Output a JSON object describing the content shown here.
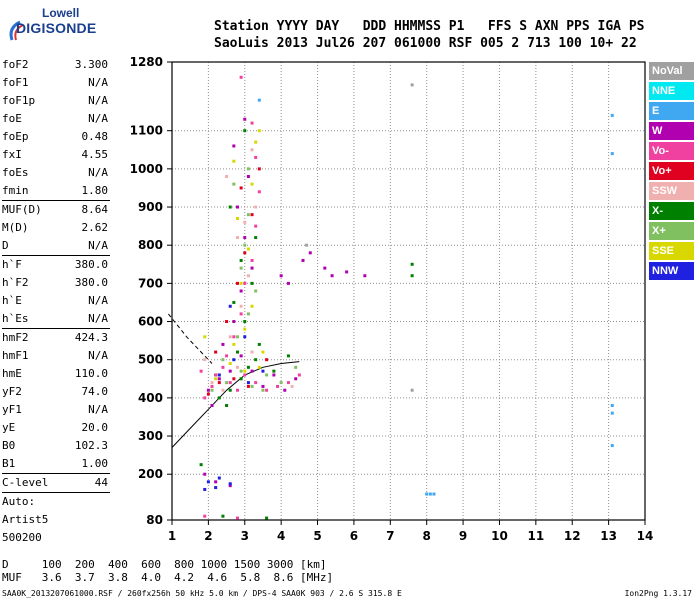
{
  "logo": {
    "line1": "Lowell",
    "line2": "DIGISONDE"
  },
  "header": {
    "line1": "Station YYYY DAY   DDD HHMMSS P1   FFS S AXN PPS IGA PS",
    "line2": "SaoLuis 2013 Jul26 207 061000 RSF 005 2 713 100 10+ 22"
  },
  "params": [
    {
      "name": "foF2",
      "value": "3.300"
    },
    {
      "name": "foF1",
      "value": "N/A"
    },
    {
      "name": "foF1p",
      "value": "N/A"
    },
    {
      "name": "foE",
      "value": "N/A"
    },
    {
      "name": "foEp",
      "value": "0.48"
    },
    {
      "name": "fxI",
      "value": "4.55"
    },
    {
      "name": "foEs",
      "value": "N/A"
    },
    {
      "name": "fmin",
      "value": "1.80",
      "sep": true
    },
    {
      "name": "MUF(D)",
      "value": "8.64"
    },
    {
      "name": "M(D)",
      "value": "2.62"
    },
    {
      "name": "D",
      "value": "N/A",
      "sep": true
    },
    {
      "name": "h`F",
      "value": "380.0"
    },
    {
      "name": "h`F2",
      "value": "380.0"
    },
    {
      "name": "h`E",
      "value": "N/A"
    },
    {
      "name": "h`Es",
      "value": "N/A",
      "sep": true
    },
    {
      "name": "hmF2",
      "value": "424.3"
    },
    {
      "name": "hmF1",
      "value": "N/A"
    },
    {
      "name": "hmE",
      "value": "110.0"
    },
    {
      "name": "yF2",
      "value": "74.0"
    },
    {
      "name": "yF1",
      "value": "N/A"
    },
    {
      "name": "yE",
      "value": "20.0"
    },
    {
      "name": "B0",
      "value": "102.3"
    },
    {
      "name": "B1",
      "value": "1.00",
      "sep": true
    },
    {
      "name": "C-level",
      "value": "44",
      "sep": true
    },
    {
      "name": "Auto:",
      "value": ""
    },
    {
      "name": "Artist5",
      "value": ""
    },
    {
      "name": "500200",
      "value": ""
    }
  ],
  "legend": [
    {
      "label": "NoVal",
      "color": "#a0a0a0"
    },
    {
      "label": "NNE",
      "color": "#00e8f0"
    },
    {
      "label": "E",
      "color": "#40a8f0"
    },
    {
      "label": "W",
      "color": "#b000b0"
    },
    {
      "label": "Vo-",
      "color": "#f040a0"
    },
    {
      "label": "Vo+",
      "color": "#e00020"
    },
    {
      "label": "SSW",
      "color": "#f0b0b0"
    },
    {
      "label": "X-",
      "color": "#008000"
    },
    {
      "label": "X+",
      "color": "#80c060"
    },
    {
      "label": "SSE",
      "color": "#d8d800"
    },
    {
      "label": "NNW",
      "color": "#2020e0"
    }
  ],
  "bottom": {
    "line1": "D     100  200  400  600  800 1000 1500 3000 [km]",
    "line2": "MUF   3.6  3.7  3.8  4.0  4.2  4.6  5.8  8.6 [MHz]"
  },
  "footer": {
    "left": "SAA0K_2013207061000.RSF / 260fx256h 50 kHz 5.0 km / DPS-4 SAA0K 903 / 2.6 S 315.8 E",
    "right": "Ion2Png 1.3.17"
  },
  "chart_data": {
    "type": "scatter",
    "title": "",
    "xlabel": "",
    "ylabel": "",
    "xlim": [
      1,
      14
    ],
    "ylim": [
      80,
      1280
    ],
    "x_ticks": [
      1,
      2,
      3,
      4,
      5,
      6,
      7,
      8,
      9,
      10,
      11,
      12,
      13,
      14
    ],
    "y_ticks": [
      80,
      200,
      300,
      400,
      500,
      600,
      700,
      800,
      900,
      1000,
      1100,
      1280
    ],
    "grid": true,
    "series": [
      {
        "name": "X-",
        "points": [
          [
            2.3,
            400
          ],
          [
            2.6,
            420
          ],
          [
            2.9,
            450
          ],
          [
            3.1,
            480
          ],
          [
            3.3,
            500
          ],
          [
            2.2,
            460
          ],
          [
            2.8,
            520
          ],
          [
            3.4,
            540
          ],
          [
            3.0,
            600
          ],
          [
            2.7,
            650
          ],
          [
            3.2,
            700
          ],
          [
            2.9,
            760
          ],
          [
            3.3,
            820
          ],
          [
            2.5,
            380
          ],
          [
            3.8,
            470
          ],
          [
            4.2,
            510
          ],
          [
            3.0,
            1100
          ],
          [
            7.6,
            720
          ],
          [
            7.6,
            750
          ],
          [
            2.6,
            900
          ],
          [
            1.8,
            225
          ],
          [
            2.4,
            90
          ],
          [
            3.6,
            85
          ]
        ]
      },
      {
        "name": "X+",
        "points": [
          [
            2.5,
            440
          ],
          [
            2.9,
            470
          ],
          [
            3.2,
            430
          ],
          [
            3.6,
            460
          ],
          [
            2.4,
            500
          ],
          [
            2.8,
            560
          ],
          [
            3.1,
            620
          ],
          [
            3.3,
            680
          ],
          [
            2.9,
            740
          ],
          [
            3.0,
            800
          ],
          [
            3.1,
            880
          ],
          [
            2.7,
            960
          ],
          [
            3.5,
            420
          ],
          [
            4.0,
            440
          ],
          [
            4.4,
            480
          ],
          [
            2.1,
            420
          ],
          [
            3.1,
            1000
          ]
        ]
      },
      {
        "name": "W",
        "points": [
          [
            2.0,
            420
          ],
          [
            2.3,
            450
          ],
          [
            2.6,
            470
          ],
          [
            2.9,
            510
          ],
          [
            3.2,
            470
          ],
          [
            3.5,
            430
          ],
          [
            3.8,
            460
          ],
          [
            4.1,
            420
          ],
          [
            4.4,
            450
          ],
          [
            2.4,
            540
          ],
          [
            2.7,
            600
          ],
          [
            2.9,
            680
          ],
          [
            3.2,
            740
          ],
          [
            3.0,
            820
          ],
          [
            2.8,
            900
          ],
          [
            3.1,
            980
          ],
          [
            2.7,
            1060
          ],
          [
            4.0,
            720
          ],
          [
            4.2,
            700
          ],
          [
            4.6,
            760
          ],
          [
            4.8,
            780
          ],
          [
            5.2,
            740
          ],
          [
            5.4,
            720
          ],
          [
            5.8,
            730
          ],
          [
            6.3,
            720
          ],
          [
            2.1,
            380
          ],
          [
            1.9,
            200
          ],
          [
            2.2,
            180
          ],
          [
            2.6,
            170
          ],
          [
            3.0,
            1130
          ]
        ]
      },
      {
        "name": "Vo-",
        "points": [
          [
            1.9,
            400
          ],
          [
            2.1,
            430
          ],
          [
            2.2,
            460
          ],
          [
            2.4,
            480
          ],
          [
            2.6,
            440
          ],
          [
            2.8,
            420
          ],
          [
            3.0,
            460
          ],
          [
            3.3,
            440
          ],
          [
            3.6,
            420
          ],
          [
            3.9,
            430
          ],
          [
            4.2,
            440
          ],
          [
            2.5,
            510
          ],
          [
            2.7,
            560
          ],
          [
            2.9,
            620
          ],
          [
            3.0,
            700
          ],
          [
            3.2,
            760
          ],
          [
            3.3,
            850
          ],
          [
            3.4,
            940
          ],
          [
            3.3,
            1030
          ],
          [
            3.2,
            1120
          ],
          [
            1.8,
            470
          ],
          [
            4.5,
            460
          ],
          [
            2.9,
            1240
          ],
          [
            1.9,
            90
          ],
          [
            2.8,
            85
          ]
        ]
      },
      {
        "name": "Vo+",
        "points": [
          [
            2.0,
            410
          ],
          [
            2.3,
            440
          ],
          [
            2.7,
            450
          ],
          [
            3.1,
            430
          ],
          [
            2.5,
            600
          ],
          [
            2.8,
            700
          ],
          [
            3.0,
            780
          ],
          [
            3.2,
            880
          ],
          [
            2.9,
            950
          ],
          [
            3.4,
            1000
          ],
          [
            2.2,
            520
          ],
          [
            3.6,
            500
          ]
        ]
      },
      {
        "name": "SSW",
        "points": [
          [
            2.1,
            440
          ],
          [
            2.4,
            420
          ],
          [
            2.8,
            480
          ],
          [
            3.2,
            520
          ],
          [
            2.6,
            560
          ],
          [
            2.9,
            640
          ],
          [
            3.1,
            720
          ],
          [
            2.8,
            820
          ],
          [
            3.0,
            860
          ],
          [
            3.3,
            900
          ],
          [
            2.5,
            980
          ],
          [
            3.2,
            1050
          ],
          [
            1.9,
            500
          ],
          [
            4.3,
            430
          ]
        ]
      },
      {
        "name": "SSE",
        "points": [
          [
            2.2,
            450
          ],
          [
            2.6,
            490
          ],
          [
            3.0,
            470
          ],
          [
            3.4,
            480
          ],
          [
            2.7,
            540
          ],
          [
            3.0,
            580
          ],
          [
            3.2,
            640
          ],
          [
            2.9,
            700
          ],
          [
            3.1,
            790
          ],
          [
            2.8,
            870
          ],
          [
            3.2,
            960
          ],
          [
            3.3,
            1070
          ],
          [
            3.4,
            1100
          ],
          [
            2.7,
            1020
          ],
          [
            1.9,
            560
          ],
          [
            3.5,
            520
          ]
        ]
      },
      {
        "name": "NNW",
        "points": [
          [
            2.3,
            460
          ],
          [
            2.7,
            500
          ],
          [
            3.1,
            440
          ],
          [
            3.5,
            470
          ],
          [
            3.0,
            560
          ],
          [
            2.6,
            640
          ],
          [
            2.0,
            180
          ],
          [
            2.2,
            165
          ],
          [
            2.6,
            175
          ],
          [
            2.3,
            190
          ],
          [
            1.9,
            160
          ]
        ]
      },
      {
        "name": "E",
        "points": [
          [
            13.1,
            1140
          ],
          [
            13.1,
            1040
          ],
          [
            13.1,
            380
          ],
          [
            13.1,
            360
          ],
          [
            13.1,
            275
          ],
          [
            8.0,
            148
          ],
          [
            8.1,
            148
          ],
          [
            8.2,
            148
          ],
          [
            3.4,
            1180
          ]
        ]
      },
      {
        "name": "NoVal",
        "points": [
          [
            7.6,
            1220
          ],
          [
            7.6,
            420
          ],
          [
            4.7,
            800
          ]
        ]
      }
    ],
    "trace_dashed": [
      [
        0.9,
        620
      ],
      [
        1.4,
        560
      ],
      [
        1.8,
        520
      ],
      [
        2.1,
        490
      ]
    ],
    "trace_solid": [
      [
        1.0,
        270
      ],
      [
        1.5,
        320
      ],
      [
        2.0,
        370
      ],
      [
        2.5,
        420
      ],
      [
        3.0,
        460
      ],
      [
        3.5,
        480
      ],
      [
        4.0,
        490
      ],
      [
        4.5,
        495
      ]
    ]
  }
}
